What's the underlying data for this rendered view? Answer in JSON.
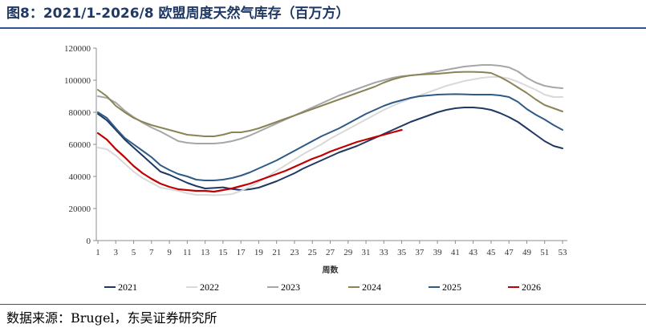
{
  "title": "图8：2021/1-2026/8 欧盟周度天然气库存（百万方）",
  "source": "数据来源：Brugel，东吴证券研究所",
  "chart_data": {
    "type": "line",
    "xlabel": "周数",
    "ylabel": "",
    "ylim": [
      0,
      120000
    ],
    "yticks": [
      0,
      20000,
      40000,
      60000,
      80000,
      100000,
      120000
    ],
    "xlim": [
      1,
      53
    ],
    "xticks": [
      1,
      3,
      5,
      7,
      9,
      11,
      13,
      15,
      17,
      19,
      21,
      23,
      25,
      27,
      29,
      31,
      33,
      35,
      37,
      39,
      41,
      43,
      45,
      47,
      49,
      51,
      53
    ],
    "grid": false,
    "legend": "bottom",
    "series": [
      {
        "name": "2021",
        "color": "#1f3864",
        "x": [
          1,
          2,
          3,
          4,
          5,
          6,
          7,
          8,
          9,
          10,
          11,
          12,
          13,
          14,
          15,
          16,
          17,
          18,
          19,
          20,
          21,
          22,
          23,
          24,
          25,
          26,
          27,
          28,
          29,
          30,
          31,
          32,
          33,
          34,
          35,
          36,
          37,
          38,
          39,
          40,
          41,
          42,
          43,
          44,
          45,
          46,
          47,
          48,
          49,
          50,
          51,
          52,
          53
        ],
        "values": [
          79000,
          75000,
          69000,
          63000,
          58000,
          53000,
          48000,
          43000,
          41000,
          38500,
          36000,
          34000,
          32500,
          32800,
          33200,
          32200,
          31500,
          32000,
          33000,
          35000,
          37000,
          39500,
          42000,
          45000,
          47500,
          50000,
          52500,
          55000,
          57000,
          59000,
          61500,
          64000,
          66500,
          69000,
          71500,
          74000,
          76000,
          78000,
          80000,
          81500,
          82500,
          83000,
          83000,
          82500,
          81500,
          79500,
          77000,
          74000,
          70000,
          66000,
          62000,
          59000,
          57500
        ]
      },
      {
        "name": "2022",
        "color": "#d9d9d9",
        "x": [
          1,
          2,
          3,
          4,
          5,
          6,
          7,
          8,
          9,
          10,
          11,
          12,
          13,
          14,
          15,
          16,
          17,
          18,
          19,
          20,
          21,
          22,
          23,
          24,
          25,
          26,
          27,
          28,
          29,
          30,
          31,
          32,
          33,
          34,
          35,
          36,
          37,
          38,
          39,
          40,
          41,
          42,
          43,
          44,
          45,
          46,
          47,
          48,
          49,
          50,
          51,
          52,
          53
        ],
        "values": [
          58000,
          57000,
          53000,
          48000,
          43000,
          39000,
          36000,
          33000,
          32000,
          31000,
          29500,
          28500,
          28500,
          28300,
          28500,
          29000,
          31000,
          33500,
          36500,
          40000,
          43500,
          47000,
          50500,
          54000,
          57000,
          60000,
          63500,
          66500,
          69500,
          72500,
          75500,
          78500,
          81500,
          84000,
          86500,
          88500,
          90500,
          92500,
          94500,
          96500,
          98000,
          99500,
          100500,
          101500,
          102000,
          102000,
          101000,
          99000,
          96500,
          94000,
          91000,
          89500,
          89500
        ]
      },
      {
        "name": "2023",
        "color": "#a6a6a6",
        "x": [
          1,
          2,
          3,
          4,
          5,
          6,
          7,
          8,
          9,
          10,
          11,
          12,
          13,
          14,
          15,
          16,
          17,
          18,
          19,
          20,
          21,
          22,
          23,
          24,
          25,
          26,
          27,
          28,
          29,
          30,
          31,
          32,
          33,
          34,
          35,
          36,
          37,
          38,
          39,
          40,
          41,
          42,
          43,
          44,
          45,
          46,
          47,
          48,
          49,
          50,
          51,
          52,
          53
        ],
        "values": [
          90000,
          89000,
          86000,
          81000,
          77000,
          73500,
          70500,
          68000,
          65000,
          62000,
          61000,
          60500,
          60500,
          60500,
          61000,
          62000,
          63500,
          65500,
          68000,
          70500,
          73000,
          75500,
          78000,
          80500,
          83000,
          85500,
          88000,
          90500,
          92500,
          94500,
          96500,
          98500,
          100000,
          101500,
          102500,
          103000,
          103500,
          104500,
          105500,
          106500,
          107500,
          108500,
          109000,
          109500,
          109500,
          109000,
          108000,
          105500,
          101500,
          98500,
          96500,
          95500,
          95000
        ]
      },
      {
        "name": "2024",
        "color": "#8a8455",
        "x": [
          1,
          2,
          3,
          4,
          5,
          6,
          7,
          8,
          9,
          10,
          11,
          12,
          13,
          14,
          15,
          16,
          17,
          18,
          19,
          20,
          21,
          22,
          23,
          24,
          25,
          26,
          27,
          28,
          29,
          30,
          31,
          32,
          33,
          34,
          35,
          36,
          37,
          38,
          39,
          40,
          41,
          42,
          43,
          44,
          45,
          46,
          47,
          48,
          49,
          50,
          51,
          52,
          53
        ],
        "values": [
          94000,
          90000,
          84000,
          80000,
          76500,
          74000,
          72000,
          70500,
          69000,
          67500,
          66000,
          65500,
          65000,
          65000,
          66000,
          67500,
          67500,
          68500,
          70000,
          72000,
          74000,
          76000,
          78000,
          80000,
          82000,
          84000,
          86000,
          88000,
          90000,
          92000,
          94000,
          96000,
          98500,
          100500,
          102000,
          103000,
          103500,
          103800,
          104000,
          104500,
          105000,
          105200,
          105200,
          105000,
          104500,
          102000,
          99000,
          95500,
          92000,
          88000,
          84500,
          82500,
          80500
        ]
      },
      {
        "name": "2025",
        "color": "#2e5a87",
        "x": [
          1,
          2,
          3,
          4,
          5,
          6,
          7,
          8,
          9,
          10,
          11,
          12,
          13,
          14,
          15,
          16,
          17,
          18,
          19,
          20,
          21,
          22,
          23,
          24,
          25,
          26,
          27,
          28,
          29,
          30,
          31,
          32,
          33,
          34,
          35,
          36,
          37,
          38,
          39,
          40,
          41,
          42,
          43,
          44,
          45,
          46,
          47,
          48,
          49,
          50,
          51,
          52,
          53
        ],
        "values": [
          80000,
          76500,
          70000,
          64000,
          60000,
          56000,
          52000,
          47000,
          44000,
          41500,
          40000,
          38000,
          37500,
          37500,
          38000,
          39000,
          40500,
          42500,
          45000,
          47500,
          50000,
          53000,
          56000,
          59000,
          62000,
          65000,
          67500,
          70000,
          73000,
          76000,
          79000,
          81500,
          84000,
          86000,
          87500,
          89000,
          90000,
          90500,
          91000,
          91200,
          91300,
          91200,
          91000,
          91000,
          91000,
          90500,
          89500,
          86500,
          82000,
          78500,
          75500,
          72000,
          69000
        ]
      },
      {
        "name": "2026",
        "color": "#c00000",
        "x": [
          1,
          2,
          3,
          4,
          5,
          6,
          7,
          8,
          9,
          10,
          11,
          12,
          13,
          14,
          15,
          16,
          17,
          18,
          19,
          20,
          21,
          22,
          23,
          24,
          25,
          26,
          27,
          28,
          29,
          30,
          31,
          32,
          33,
          34,
          35
        ],
        "values": [
          67000,
          63000,
          57000,
          52000,
          46500,
          42000,
          38500,
          35500,
          33500,
          32000,
          31500,
          31000,
          31000,
          30500,
          31500,
          32500,
          34000,
          35500,
          37500,
          39500,
          41500,
          43500,
          46000,
          48500,
          51000,
          53000,
          55500,
          57500,
          59500,
          61500,
          63000,
          64500,
          66000,
          67500,
          69000
        ]
      }
    ]
  }
}
